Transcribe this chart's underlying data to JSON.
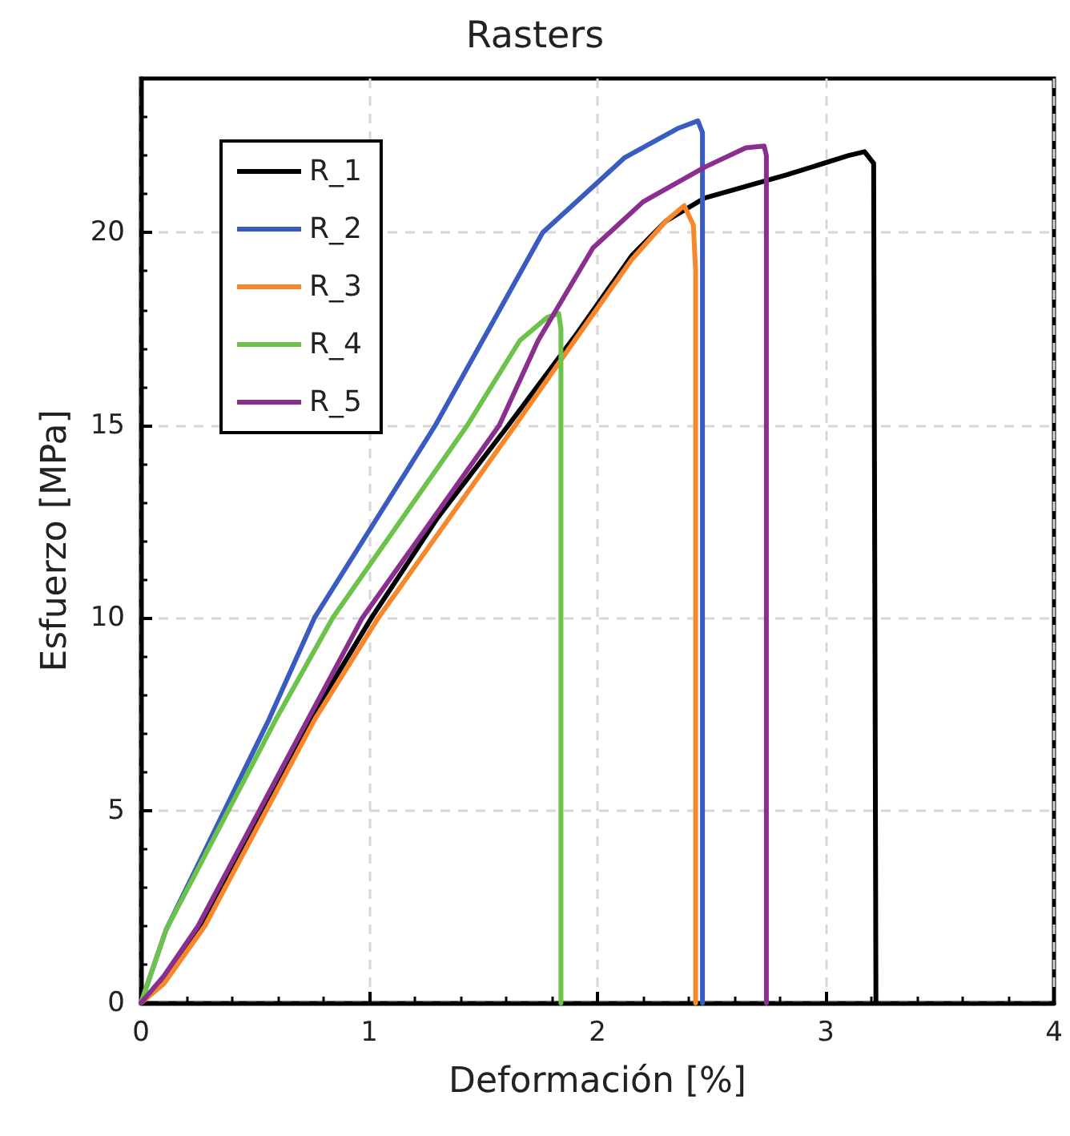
{
  "chart_data": {
    "type": "line",
    "title": "Rasters",
    "xlabel": "Deformación [%]",
    "ylabel": "Esfuerzo [MPa]",
    "xlim": [
      0,
      4
    ],
    "xticks": [
      0,
      1,
      2,
      3,
      4
    ],
    "ylim": [
      0,
      24
    ],
    "yticks": [
      0,
      5,
      10,
      15,
      20
    ],
    "grid": true,
    "legend": "top left",
    "marker": "none",
    "line_style": "solid",
    "series": [
      {
        "name": "R_1",
        "color": "#000000",
        "x": [
          0,
          0.1,
          0.26,
          0.5,
          0.74,
          1.01,
          1.3,
          1.61,
          1.9,
          2.15,
          2.3,
          2.47,
          2.83,
          3.1,
          3.17,
          3.21,
          3.22
        ],
        "values": [
          0,
          0.6,
          2,
          4.6,
          7.35,
          10,
          12.6,
          15,
          17.3,
          19.4,
          20.3,
          20.9,
          21.5,
          22,
          22.1,
          21.8,
          0
        ]
      },
      {
        "name": "R_2",
        "color": "#3a5bbf",
        "x": [
          0,
          0.11,
          0.56,
          0.76,
          1.29,
          1.76,
          2.12,
          2.35,
          2.44,
          2.46,
          2.46
        ],
        "values": [
          0,
          1.9,
          7.35,
          10,
          15,
          20,
          21.95,
          22.7,
          22.9,
          22.6,
          0
        ]
      },
      {
        "name": "R_3",
        "color": "#f7872a",
        "x": [
          0,
          0.1,
          0.28,
          0.76,
          1.04,
          1.64,
          1.9,
          2.15,
          2.3,
          2.38,
          2.42,
          2.43,
          2.43
        ],
        "values": [
          0,
          0.5,
          2,
          7.35,
          10,
          15,
          17.2,
          19.3,
          20.3,
          20.7,
          20.2,
          19,
          0
        ]
      },
      {
        "name": "R_4",
        "color": "#6cc24a",
        "x": [
          0,
          0.11,
          0.59,
          0.84,
          1.43,
          1.66,
          1.78,
          1.83,
          1.84,
          1.84
        ],
        "values": [
          0,
          1.9,
          7.35,
          10,
          15,
          17.2,
          17.8,
          17.9,
          17.5,
          0
        ]
      },
      {
        "name": "R_5",
        "color": "#8b2f8f",
        "x": [
          0,
          0.1,
          0.25,
          0.73,
          0.97,
          1.57,
          1.74,
          1.98,
          2.2,
          2.47,
          2.65,
          2.73,
          2.74,
          2.74
        ],
        "values": [
          0,
          0.7,
          2,
          7.35,
          10,
          15,
          17.2,
          19.6,
          20.8,
          21.7,
          22.2,
          22.25,
          22,
          0
        ]
      }
    ]
  }
}
